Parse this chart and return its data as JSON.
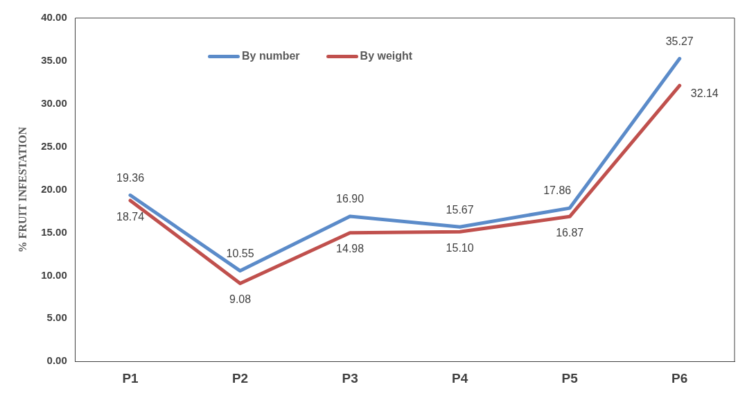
{
  "chart_data": {
    "type": "line",
    "ylabel": "% FRUIT INFESTATION",
    "categories": [
      "P1",
      "P2",
      "P3",
      "P4",
      "P5",
      "P6"
    ],
    "series": [
      {
        "name": "By number",
        "color": "#5b8bc9",
        "values": [
          19.36,
          10.55,
          16.9,
          15.67,
          17.86,
          35.27
        ],
        "value_labels": [
          "19.36",
          "10.55",
          "16.90",
          "15.67",
          "17.86",
          "35.27"
        ]
      },
      {
        "name": "By weight",
        "color": "#c0504d",
        "values": [
          18.74,
          9.08,
          14.98,
          15.1,
          16.87,
          32.14
        ],
        "value_labels": [
          "18.74",
          "9.08",
          "14.98",
          "15.10",
          "16.87",
          "32.14"
        ]
      }
    ],
    "ylim": [
      0,
      40
    ],
    "yticks": [
      {
        "value": 0,
        "label": "0.00"
      },
      {
        "value": 5,
        "label": "5.00"
      },
      {
        "value": 10,
        "label": "10.00"
      },
      {
        "value": 15,
        "label": "15.00"
      },
      {
        "value": 20,
        "label": "20.00"
      },
      {
        "value": 25,
        "label": "25.00"
      },
      {
        "value": 30,
        "label": "30.00"
      },
      {
        "value": 35,
        "label": "35.00"
      },
      {
        "value": 40,
        "label": "40.00"
      }
    ],
    "grid": false,
    "legend": "top left",
    "marker": "none",
    "line_style": "solid"
  }
}
